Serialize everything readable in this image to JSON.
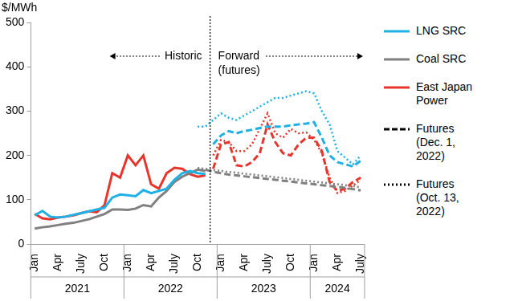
{
  "chart_data": {
    "type": "line",
    "y_label": "$/MWh",
    "categories": [
      "Jan",
      null,
      null,
      "Apr",
      null,
      null,
      "July",
      null,
      null,
      "Oct",
      null,
      null,
      "Jan",
      null,
      null,
      "Apr",
      null,
      null,
      "July",
      null,
      null,
      "Oct",
      null,
      null,
      "Jan",
      null,
      null,
      "Apr",
      null,
      null,
      "July",
      null,
      null,
      "Oct",
      null,
      null,
      "Jan",
      null,
      null,
      "Apr",
      null,
      null,
      "July"
    ],
    "x_groups": [
      {
        "label": "2021",
        "span": 12
      },
      {
        "label": "2022",
        "span": 12
      },
      {
        "label": "2023",
        "span": 12
      },
      {
        "label": "2024",
        "span": 7
      }
    ],
    "ylim": [
      0,
      500
    ],
    "yticks": [
      0,
      100,
      200,
      300,
      400,
      500
    ],
    "grid": false,
    "legend": "right",
    "annotations": {
      "divider": 22.6,
      "historic": "Historic",
      "forward": "Forward\n(futures)"
    },
    "series": [
      {
        "name": "LNG SRC",
        "color": "#1fb1e6",
        "line_style": "solid",
        "values": [
          65,
          75,
          62,
          60,
          62,
          66,
          70,
          74,
          78,
          82,
          105,
          112,
          110,
          108,
          122,
          115,
          120,
          125,
          145,
          160,
          165,
          160,
          158,
          null,
          null,
          null,
          null,
          null,
          null,
          null,
          null,
          null,
          null,
          null,
          null,
          null,
          null,
          null,
          null,
          null,
          null,
          null,
          null
        ]
      },
      {
        "name": "Coal SRC",
        "color": "#808080",
        "line_style": "solid",
        "values": [
          35,
          38,
          40,
          43,
          46,
          48,
          52,
          56,
          62,
          68,
          78,
          78,
          77,
          80,
          88,
          85,
          105,
          120,
          140,
          152,
          160,
          168,
          165,
          null,
          null,
          null,
          null,
          null,
          null,
          null,
          null,
          null,
          null,
          null,
          null,
          null,
          null,
          null,
          null,
          null,
          null,
          null,
          null
        ]
      },
      {
        "name": "East Japan Power",
        "color": "#e8352b",
        "line_style": "solid",
        "values": [
          68,
          58,
          56,
          60,
          62,
          65,
          70,
          74,
          72,
          88,
          160,
          150,
          200,
          178,
          200,
          135,
          125,
          160,
          172,
          170,
          158,
          152,
          155,
          null,
          null,
          null,
          null,
          null,
          null,
          null,
          null,
          null,
          null,
          null,
          null,
          null,
          null,
          null,
          null,
          null,
          null,
          null,
          null
        ]
      },
      {
        "name": "Futures (Dec. 1, 2022)",
        "color": "#000000",
        "line_style": "dashed",
        "lines": [
          {
            "color": "#1fb1e6",
            "values": [
              null,
              null,
              null,
              null,
              null,
              null,
              null,
              null,
              null,
              null,
              null,
              null,
              null,
              null,
              null,
              null,
              null,
              null,
              null,
              null,
              null,
              null,
              null,
              225,
              245,
              255,
              250,
              255,
              258,
              262,
              265,
              265,
              265,
              268,
              270,
              272,
              275,
              240,
              200,
              185,
              180,
              175,
              188
            ]
          },
          {
            "color": "#808080",
            "values": [
              null,
              null,
              null,
              null,
              null,
              null,
              null,
              null,
              null,
              null,
              null,
              null,
              null,
              null,
              null,
              null,
              null,
              null,
              null,
              null,
              null,
              null,
              168,
              163,
              160,
              157,
              155,
              153,
              151,
              149,
              147,
              145,
              143,
              141,
              139,
              137,
              135,
              133,
              131,
              129,
              127,
              124,
              121
            ]
          },
          {
            "color": "#e8352b",
            "values": [
              null,
              null,
              null,
              null,
              null,
              null,
              null,
              null,
              null,
              null,
              null,
              null,
              null,
              null,
              null,
              null,
              null,
              null,
              null,
              null,
              null,
              null,
              null,
              170,
              225,
              230,
              178,
              175,
              185,
              205,
              270,
              230,
              205,
              200,
              225,
              240,
              240,
              210,
              140,
              120,
              125,
              140,
              150
            ]
          }
        ]
      },
      {
        "name": "Futures (Oct. 13, 2022)",
        "color": "#000000",
        "line_style": "dotted",
        "lines": [
          {
            "color": "#1fb1e6",
            "values": [
              null,
              null,
              null,
              null,
              null,
              null,
              null,
              null,
              null,
              null,
              null,
              null,
              null,
              null,
              null,
              null,
              null,
              null,
              null,
              null,
              null,
              265,
              265,
              280,
              295,
              285,
              280,
              290,
              300,
              310,
              320,
              330,
              330,
              335,
              340,
              345,
              340,
              300,
              270,
              210,
              195,
              180,
              200
            ]
          },
          {
            "color": "#808080",
            "values": [
              null,
              null,
              null,
              null,
              null,
              null,
              null,
              null,
              null,
              null,
              null,
              null,
              null,
              null,
              null,
              null,
              null,
              null,
              null,
              null,
              null,
              172,
              170,
              167,
              165,
              163,
              161,
              159,
              157,
              155,
              153,
              151,
              149,
              147,
              145,
              143,
              141,
              139,
              137,
              135,
              133,
              131,
              128
            ]
          },
          {
            "color": "#e8352b",
            "values": [
              null,
              null,
              null,
              null,
              null,
              null,
              null,
              null,
              null,
              null,
              null,
              null,
              null,
              null,
              null,
              null,
              null,
              null,
              null,
              null,
              null,
              null,
              null,
              200,
              235,
              230,
              210,
              210,
              225,
              260,
              295,
              250,
              240,
              260,
              250,
              252,
              235,
              205,
              150,
              115,
              120,
              132,
              145
            ]
          }
        ]
      }
    ]
  }
}
